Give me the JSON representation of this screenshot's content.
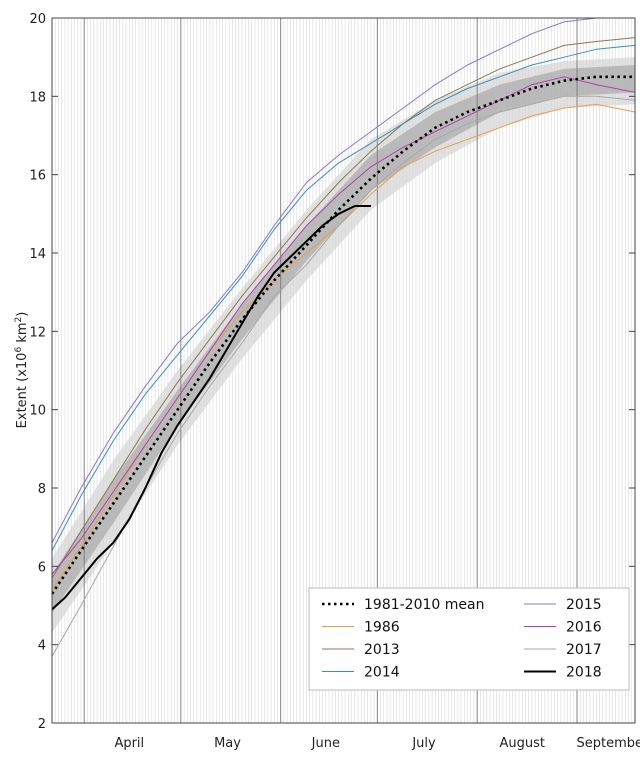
{
  "chart_data": {
    "type": "line",
    "title": "",
    "ylabel": "Extent (x10",
    "ylabel_sup_exp": "6",
    "ylabel_unit": " km",
    "ylabel_sup_unit": "2",
    "ylabel_close": ")",
    "ylim": [
      2,
      20
    ],
    "yticks": [
      2,
      4,
      6,
      8,
      10,
      12,
      14,
      16,
      18,
      20
    ],
    "x_unit": "day of year",
    "xlim": [
      81,
      262
    ],
    "month_labels": [
      {
        "label": "April",
        "center": 105
      },
      {
        "label": "May",
        "center": 135.5
      },
      {
        "label": "June",
        "center": 166
      },
      {
        "label": "July",
        "center": 196.5
      },
      {
        "label": "August",
        "center": 227
      },
      {
        "label": "September",
        "center": 255
      }
    ],
    "month_boundaries": [
      91,
      121,
      152,
      182,
      213,
      244
    ],
    "legend_placement": "bottom-right",
    "envelope_outer": {
      "x": [
        81,
        100,
        120,
        140,
        160,
        180,
        200,
        220,
        240,
        262
      ],
      "upper": [
        6.2,
        8.7,
        11.0,
        13.1,
        15.1,
        16.9,
        17.9,
        18.6,
        18.9,
        19.0
      ],
      "lower": [
        4.3,
        6.6,
        9.1,
        11.3,
        13.3,
        15.1,
        16.3,
        17.2,
        17.7,
        17.8
      ]
    },
    "envelope_inner": {
      "x": [
        81,
        100,
        120,
        140,
        160,
        180,
        200,
        220,
        240,
        262
      ],
      "upper": [
        5.8,
        8.2,
        10.5,
        12.7,
        14.7,
        16.5,
        17.6,
        18.3,
        18.7,
        18.8
      ],
      "lower": [
        4.8,
        7.1,
        9.6,
        11.8,
        13.8,
        15.6,
        16.7,
        17.6,
        18.0,
        18.1
      ]
    },
    "series": [
      {
        "name": "1981-2010 mean",
        "color": "#000000",
        "style": "dotted",
        "x": [
          81,
          90,
          100,
          110,
          120,
          130,
          140,
          150,
          160,
          170,
          180,
          190,
          200,
          210,
          220,
          230,
          240,
          250,
          262
        ],
        "values": [
          5.3,
          6.4,
          7.6,
          8.8,
          10.0,
          11.2,
          12.3,
          13.3,
          14.2,
          15.1,
          15.9,
          16.6,
          17.2,
          17.6,
          17.9,
          18.2,
          18.4,
          18.5,
          18.5
        ]
      },
      {
        "name": "1986",
        "color": "#e8a050",
        "style": "solid",
        "x": [
          81,
          90,
          100,
          110,
          120,
          130,
          140,
          150,
          160,
          170,
          180,
          190,
          200,
          210,
          220,
          230,
          240,
          250,
          262
        ],
        "values": [
          5.4,
          6.5,
          7.8,
          9.1,
          10.3,
          11.5,
          12.5,
          13.3,
          14.0,
          14.7,
          15.5,
          16.2,
          16.6,
          16.9,
          17.2,
          17.5,
          17.7,
          17.8,
          17.6
        ]
      },
      {
        "name": "2013",
        "color": "#8a7a50",
        "style": "solid",
        "x": [
          81,
          90,
          100,
          110,
          120,
          130,
          140,
          150,
          160,
          170,
          180,
          190,
          200,
          210,
          220,
          230,
          240,
          250,
          262
        ],
        "values": [
          5.7,
          6.9,
          8.2,
          9.5,
          10.7,
          11.8,
          12.9,
          13.9,
          14.9,
          15.8,
          16.6,
          17.3,
          17.9,
          18.3,
          18.7,
          19.0,
          19.3,
          19.4,
          19.5
        ]
      },
      {
        "name": "2014",
        "color": "#3a8fb8",
        "style": "solid",
        "x": [
          81,
          90,
          100,
          110,
          120,
          130,
          140,
          150,
          160,
          170,
          180,
          190,
          200,
          210,
          220,
          230,
          240,
          250,
          262
        ],
        "values": [
          6.4,
          7.8,
          9.2,
          10.4,
          11.4,
          12.4,
          13.4,
          14.6,
          15.6,
          16.3,
          16.8,
          17.3,
          17.8,
          18.2,
          18.5,
          18.8,
          19.0,
          19.2,
          19.3
        ]
      },
      {
        "name": "2015",
        "color": "#8878c8",
        "style": "solid",
        "x": [
          81,
          90,
          100,
          110,
          120,
          130,
          140,
          150,
          160,
          170,
          180,
          190,
          200,
          210,
          220,
          230,
          240,
          250,
          262
        ],
        "values": [
          6.6,
          8.0,
          9.4,
          10.6,
          11.7,
          12.5,
          13.5,
          14.7,
          15.8,
          16.5,
          17.1,
          17.7,
          18.3,
          18.8,
          19.2,
          19.6,
          19.9,
          20.0,
          20.0
        ]
      },
      {
        "name": "2016",
        "color": "#b040b0",
        "style": "solid",
        "x": [
          81,
          90,
          100,
          110,
          120,
          130,
          140,
          150,
          160,
          170,
          180,
          190,
          200,
          210,
          220,
          230,
          240,
          250,
          262
        ],
        "values": [
          5.8,
          6.7,
          7.9,
          9.1,
          10.3,
          11.5,
          12.7,
          13.7,
          14.7,
          15.5,
          16.2,
          16.7,
          17.1,
          17.5,
          17.9,
          18.3,
          18.5,
          18.3,
          18.1
        ]
      },
      {
        "name": "2017",
        "color": "#a8a8a8",
        "style": "solid",
        "x": [
          81,
          90,
          100,
          110,
          120,
          130,
          140,
          150,
          160,
          170,
          180,
          190,
          200,
          210,
          220,
          230,
          240,
          250,
          262
        ],
        "values": [
          3.7,
          5.0,
          6.5,
          8.0,
          9.4,
          10.6,
          11.7,
          12.9,
          13.7,
          14.7,
          15.6,
          16.3,
          16.9,
          17.3,
          17.6,
          17.8,
          18.0,
          18.0,
          17.9
        ]
      },
      {
        "name": "2018",
        "color": "#000000",
        "style": "solid-thick",
        "x": [
          81,
          85,
          90,
          95,
          100,
          105,
          110,
          115,
          120,
          125,
          130,
          135,
          140,
          145,
          150,
          155,
          160,
          165,
          170,
          175,
          180
        ],
        "values": [
          4.9,
          5.2,
          5.7,
          6.2,
          6.6,
          7.2,
          8.0,
          8.9,
          9.6,
          10.2,
          10.8,
          11.5,
          12.2,
          12.9,
          13.5,
          13.9,
          14.3,
          14.7,
          15.0,
          15.2,
          15.2
        ]
      }
    ]
  }
}
